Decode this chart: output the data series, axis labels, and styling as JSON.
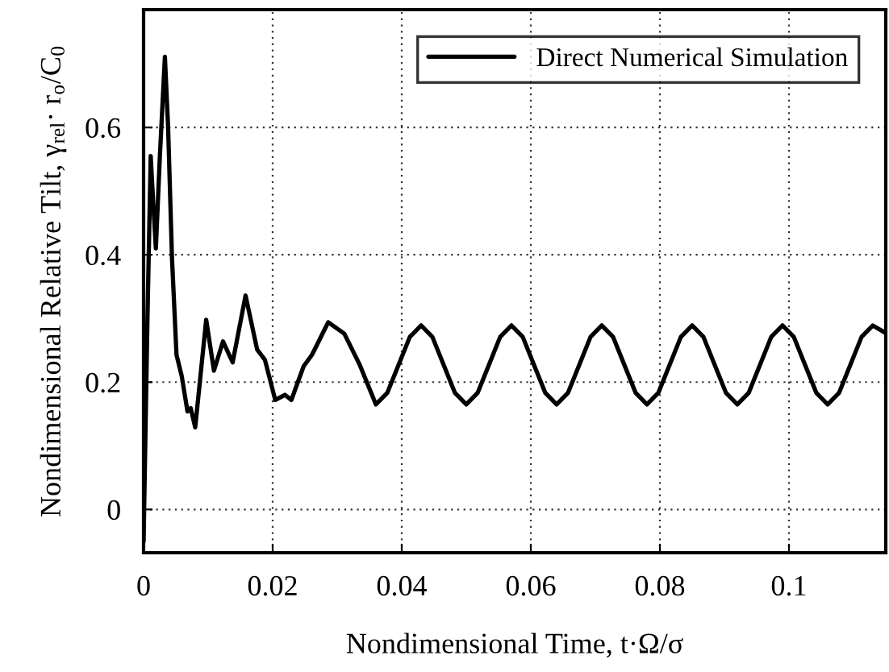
{
  "chart_data": {
    "type": "line",
    "xlabel": "Nondimensional Time, t·Ω/σ",
    "ylabel": "Nondimensional Relative Tilt, γ$_{rel}$· r$_{o}$/C$_{0}$",
    "xlim": [
      0,
      0.115
    ],
    "ylim": [
      -0.068,
      0.785
    ],
    "xticks": [
      0,
      0.02,
      0.04,
      0.06,
      0.08,
      0.1
    ],
    "yticks": [
      0,
      0.2,
      0.4,
      0.6
    ],
    "grid": true,
    "legend": "top right",
    "series": [
      {
        "name": "Direct Numerical Simulation",
        "color": "#000000",
        "x": [
          0,
          0.0006,
          0.0011,
          0.0015,
          0.0019,
          0.0025,
          0.0033,
          0.0038,
          0.0044,
          0.0051,
          0.0059,
          0.0068,
          0.0073,
          0.008,
          0.0097,
          0.0109,
          0.0123,
          0.0138,
          0.0158,
          0.0176,
          0.0188,
          0.0204,
          0.0219,
          0.0229,
          0.0248,
          0.0261,
          0.0286,
          0.0311,
          0.0335,
          0.036,
          0.03775,
          0.0395,
          0.04125,
          0.043,
          0.04475,
          0.0465,
          0.04825,
          0.05,
          0.05175,
          0.0535,
          0.05525,
          0.057,
          0.05875,
          0.0605,
          0.06225,
          0.064,
          0.06575,
          0.0675,
          0.06925,
          0.071,
          0.07275,
          0.0745,
          0.07625,
          0.078,
          0.07975,
          0.0815,
          0.08325,
          0.085,
          0.08675,
          0.0885,
          0.09025,
          0.092,
          0.09375,
          0.0955,
          0.09725,
          0.099,
          0.10075,
          0.1025,
          0.10425,
          0.106,
          0.10775,
          0.1095,
          0.11125,
          0.113,
          0.115
        ],
        "values": [
          -0.05,
          0.3,
          0.555,
          0.48,
          0.41,
          0.55,
          0.711,
          0.6,
          0.395,
          0.243,
          0.21,
          0.154,
          0.159,
          0.129,
          0.298,
          0.218,
          0.264,
          0.231,
          0.336,
          0.251,
          0.235,
          0.172,
          0.18,
          0.172,
          0.225,
          0.243,
          0.294,
          0.276,
          0.227,
          0.165,
          0.183,
          0.227,
          0.271,
          0.289,
          0.271,
          0.227,
          0.183,
          0.165,
          0.183,
          0.227,
          0.271,
          0.289,
          0.271,
          0.227,
          0.183,
          0.165,
          0.183,
          0.227,
          0.271,
          0.289,
          0.271,
          0.227,
          0.183,
          0.165,
          0.183,
          0.227,
          0.271,
          0.289,
          0.271,
          0.227,
          0.183,
          0.165,
          0.183,
          0.227,
          0.271,
          0.289,
          0.271,
          0.227,
          0.183,
          0.165,
          0.183,
          0.227,
          0.271,
          0.289,
          0.277
        ]
      }
    ]
  }
}
